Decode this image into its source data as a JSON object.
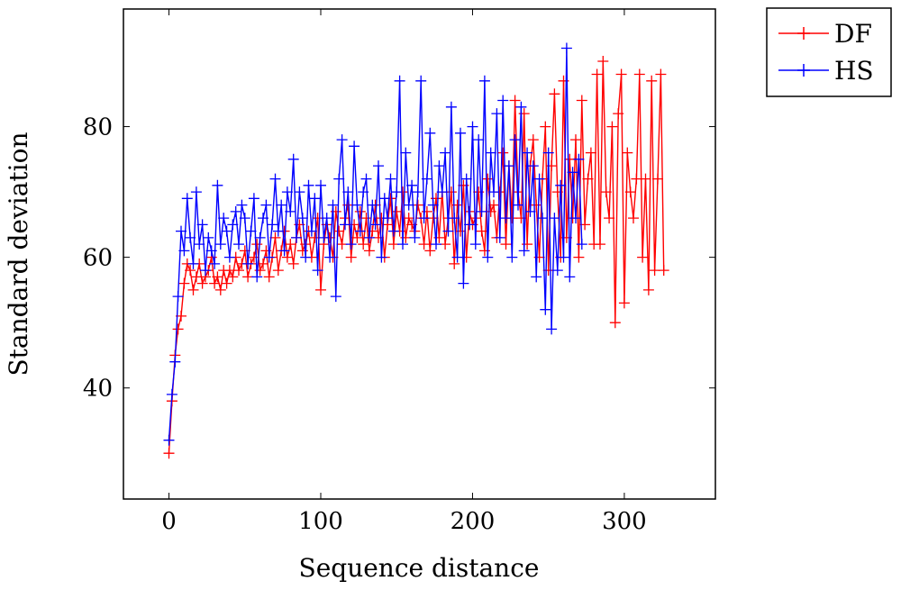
{
  "chart_data": {
    "type": "line",
    "xlabel": "Sequence distance",
    "ylabel": "Standard deviation",
    "xlim": [
      -30,
      360
    ],
    "ylim": [
      23,
      98
    ],
    "xticks": [
      0,
      100,
      200,
      300
    ],
    "yticks": [
      40,
      60,
      80
    ],
    "grid": false,
    "legend_position": "outside-top-right",
    "marker": "plus",
    "series": [
      {
        "name": "DF",
        "color": "#ff0000",
        "x": [
          0,
          2,
          4,
          6,
          8,
          10,
          12,
          14,
          16,
          18,
          20,
          22,
          24,
          26,
          28,
          30,
          32,
          34,
          36,
          38,
          40,
          42,
          44,
          46,
          48,
          50,
          52,
          54,
          56,
          58,
          60,
          62,
          64,
          66,
          68,
          70,
          72,
          74,
          76,
          78,
          80,
          82,
          84,
          86,
          88,
          90,
          92,
          94,
          96,
          98,
          100,
          102,
          104,
          106,
          108,
          110,
          112,
          114,
          116,
          118,
          120,
          122,
          124,
          126,
          128,
          130,
          132,
          134,
          136,
          138,
          140,
          142,
          144,
          146,
          148,
          150,
          152,
          154,
          156,
          158,
          160,
          162,
          164,
          166,
          168,
          170,
          172,
          174,
          176,
          178,
          180,
          182,
          184,
          186,
          188,
          190,
          192,
          194,
          196,
          198,
          200,
          202,
          204,
          206,
          208,
          210,
          212,
          214,
          216,
          218,
          220,
          222,
          224,
          226,
          228,
          230,
          232,
          234,
          236,
          238,
          240,
          242,
          244,
          246,
          248,
          250,
          252,
          254,
          256,
          258,
          260,
          262,
          264,
          266,
          268,
          270,
          272,
          274,
          276,
          278,
          280,
          282,
          284,
          286,
          288,
          290,
          292,
          294,
          296,
          298,
          300,
          302,
          304,
          306,
          308,
          310,
          312,
          314,
          316,
          318,
          320,
          322,
          324,
          326
        ],
        "values": [
          30,
          38,
          45,
          49,
          51,
          56,
          59,
          58,
          55,
          57,
          59,
          56,
          57,
          58,
          60,
          56,
          57,
          55,
          58,
          56,
          58,
          57,
          60,
          58,
          59,
          61,
          57,
          59,
          60,
          62,
          58,
          59,
          61,
          57,
          60,
          63,
          58,
          61,
          64,
          60,
          62,
          59,
          63,
          65,
          61,
          62,
          64,
          60,
          63,
          66,
          55,
          62,
          65,
          63,
          60,
          67,
          64,
          62,
          66,
          68,
          60,
          65,
          63,
          67,
          62,
          66,
          61,
          64,
          68,
          63,
          66,
          60,
          65,
          69,
          62,
          67,
          64,
          70,
          63,
          66,
          65,
          64,
          68,
          66,
          62,
          67,
          61,
          66,
          69,
          63,
          70,
          62,
          66,
          70,
          59,
          68,
          64,
          71,
          60,
          67,
          65,
          66,
          70,
          64,
          61,
          72,
          67,
          68,
          63,
          70,
          76,
          62,
          74,
          66,
          84,
          70,
          66,
          82,
          62,
          74,
          78,
          68,
          60,
          72,
          80,
          58,
          74,
          85,
          70,
          60,
          87,
          63,
          75,
          66,
          78,
          60,
          84,
          65,
          72,
          76,
          62,
          88,
          62,
          90,
          70,
          66,
          80,
          50,
          82,
          88,
          53,
          76,
          70,
          66,
          72,
          88,
          60,
          72,
          55,
          87,
          58,
          72,
          88,
          58
        ],
        "_x_note": "x in data units"
      },
      {
        "name": "HS",
        "color": "#0000ff",
        "x": [
          0,
          2,
          4,
          6,
          8,
          10,
          12,
          14,
          16,
          18,
          20,
          22,
          24,
          26,
          28,
          30,
          32,
          34,
          36,
          38,
          40,
          42,
          44,
          46,
          48,
          50,
          52,
          54,
          56,
          58,
          60,
          62,
          64,
          66,
          68,
          70,
          72,
          74,
          76,
          78,
          80,
          82,
          84,
          86,
          88,
          90,
          92,
          94,
          96,
          98,
          100,
          102,
          104,
          106,
          108,
          110,
          112,
          114,
          116,
          118,
          120,
          122,
          124,
          126,
          128,
          130,
          132,
          134,
          136,
          138,
          140,
          142,
          144,
          146,
          148,
          150,
          152,
          154,
          156,
          158,
          160,
          162,
          164,
          166,
          168,
          170,
          172,
          174,
          176,
          178,
          180,
          182,
          184,
          186,
          188,
          190,
          192,
          194,
          196,
          198,
          200,
          202,
          204,
          206,
          208,
          210,
          212,
          214,
          216,
          218,
          220,
          222,
          224,
          226,
          228,
          230,
          232,
          234,
          236,
          238,
          240,
          242,
          244,
          246,
          248,
          250,
          252,
          254,
          256,
          258,
          260,
          262,
          264,
          266,
          268,
          270,
          272
        ],
        "values": [
          32,
          39,
          44,
          54,
          64,
          61,
          69,
          63,
          59,
          70,
          62,
          65,
          58,
          63,
          61,
          59,
          71,
          62,
          66,
          64,
          60,
          65,
          67,
          62,
          68,
          66,
          59,
          64,
          69,
          57,
          63,
          66,
          68,
          60,
          65,
          72,
          64,
          68,
          61,
          70,
          67,
          75,
          63,
          70,
          66,
          60,
          71,
          64,
          69,
          58,
          71,
          63,
          66,
          60,
          68,
          54,
          72,
          78,
          65,
          70,
          62,
          77,
          68,
          64,
          70,
          72,
          63,
          68,
          65,
          74,
          60,
          69,
          66,
          72,
          64,
          70,
          87,
          62,
          76,
          68,
          71,
          63,
          70,
          87,
          66,
          72,
          79,
          68,
          62,
          74,
          70,
          76,
          64,
          83,
          66,
          60,
          79,
          56,
          72,
          65,
          80,
          62,
          78,
          67,
          87,
          60,
          76,
          70,
          82,
          63,
          84,
          66,
          74,
          60,
          78,
          68,
          83,
          61,
          76,
          67,
          74,
          57,
          72,
          66,
          52,
          76,
          49,
          66,
          58,
          71,
          60,
          92,
          57,
          73,
          66,
          75,
          62
        ]
      }
    ]
  }
}
